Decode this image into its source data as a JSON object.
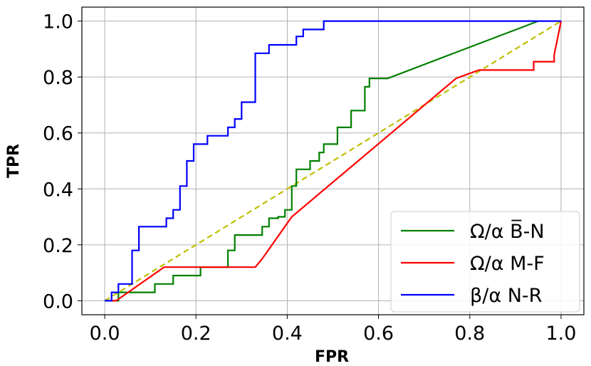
{
  "chart_data": {
    "type": "line",
    "xlabel": "FPR",
    "ylabel": "TPR",
    "xlim": [
      -0.05,
      1.05
    ],
    "ylim": [
      -0.05,
      1.05
    ],
    "xticks": [
      0.0,
      0.2,
      0.4,
      0.6,
      0.8,
      1.0
    ],
    "yticks": [
      0.0,
      0.2,
      0.4,
      0.6,
      0.8,
      1.0
    ],
    "xtick_labels": [
      "0.0",
      "0.2",
      "0.4",
      "0.6",
      "0.8",
      "1.0"
    ],
    "ytick_labels": [
      "0.0",
      "0.2",
      "0.4",
      "0.6",
      "0.8",
      "1.0"
    ],
    "grid": true,
    "legend_position": "bottom-right",
    "series": [
      {
        "name": "Ω/α B̅-N",
        "color": "#008000",
        "x": [
          0.0,
          0.03,
          0.03,
          0.11,
          0.11,
          0.15,
          0.15,
          0.21,
          0.21,
          0.27,
          0.27,
          0.285,
          0.285,
          0.3,
          0.3,
          0.345,
          0.345,
          0.36,
          0.36,
          0.38,
          0.38,
          0.395,
          0.395,
          0.41,
          0.41,
          0.42,
          0.42,
          0.45,
          0.45,
          0.47,
          0.47,
          0.48,
          0.48,
          0.51,
          0.51,
          0.54,
          0.54,
          0.57,
          0.57,
          0.58,
          0.58,
          0.59,
          0.59,
          0.62,
          0.95
        ],
        "y": [
          0.0,
          0.0,
          0.03,
          0.03,
          0.06,
          0.06,
          0.09,
          0.09,
          0.12,
          0.12,
          0.18,
          0.18,
          0.235,
          0.235,
          0.235,
          0.235,
          0.265,
          0.265,
          0.295,
          0.295,
          0.3,
          0.3,
          0.325,
          0.325,
          0.41,
          0.41,
          0.47,
          0.47,
          0.5,
          0.5,
          0.53,
          0.53,
          0.56,
          0.56,
          0.62,
          0.62,
          0.68,
          0.68,
          0.765,
          0.765,
          0.795,
          0.795,
          0.795,
          0.795,
          1.0
        ]
      },
      {
        "name": "Ω/α M-F",
        "color": "#ff0000",
        "x": [
          0.0,
          0.025,
          0.13,
          0.33,
          0.33,
          0.345,
          0.41,
          0.77,
          0.82,
          0.94,
          0.94,
          0.985,
          0.985,
          1.0
        ],
        "y": [
          0.0,
          0.0,
          0.12,
          0.12,
          0.12,
          0.15,
          0.3,
          0.795,
          0.825,
          0.825,
          0.855,
          0.855,
          0.88,
          1.0
        ]
      },
      {
        "name": "β/α N-R",
        "color": "#0000ff",
        "x": [
          0.0,
          0.015,
          0.015,
          0.03,
          0.03,
          0.06,
          0.06,
          0.075,
          0.075,
          0.135,
          0.135,
          0.15,
          0.15,
          0.165,
          0.165,
          0.18,
          0.18,
          0.195,
          0.195,
          0.225,
          0.225,
          0.27,
          0.27,
          0.285,
          0.285,
          0.3,
          0.3,
          0.33,
          0.33,
          0.36,
          0.36,
          0.42,
          0.42,
          0.435,
          0.435,
          0.48,
          0.48,
          1.0
        ],
        "y": [
          0.0,
          0.0,
          0.03,
          0.03,
          0.06,
          0.06,
          0.18,
          0.18,
          0.265,
          0.265,
          0.295,
          0.295,
          0.325,
          0.325,
          0.41,
          0.41,
          0.5,
          0.5,
          0.56,
          0.56,
          0.59,
          0.59,
          0.62,
          0.62,
          0.65,
          0.65,
          0.71,
          0.71,
          0.885,
          0.885,
          0.915,
          0.915,
          0.945,
          0.945,
          0.97,
          0.97,
          1.0,
          1.0
        ]
      },
      {
        "name": "",
        "color": "#bfbf00",
        "dashed": true,
        "x": [
          0.0,
          1.0
        ],
        "y": [
          0.0,
          1.0
        ]
      }
    ]
  }
}
